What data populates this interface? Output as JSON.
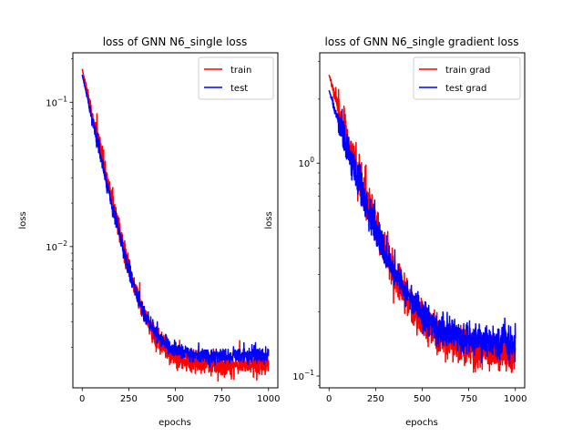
{
  "chart_data": [
    {
      "type": "line",
      "title": "loss of GNN N6_single loss",
      "xlabel": "epochs",
      "ylabel": "loss",
      "yscale": "log",
      "xlim": [
        -50,
        1050
      ],
      "ylim": [
        0.00105,
        0.22
      ],
      "xticks": [
        0,
        250,
        500,
        750,
        1000
      ],
      "yticks": [
        {
          "value": 0.1,
          "base": "10",
          "exp": "−1"
        },
        {
          "value": 0.01,
          "base": "10",
          "exp": "−2"
        }
      ],
      "legend_position": "top-right",
      "grid": false,
      "series": [
        {
          "name": "train",
          "color": "#ff0000",
          "start": 0.17,
          "tail": 0.00152,
          "rate": 0.0135,
          "noise": 0.16,
          "trend": 0.0
        },
        {
          "name": "test",
          "color": "#0000ff",
          "start": 0.155,
          "tail": 0.00175,
          "rate": 0.0135,
          "noise": 0.11,
          "trend": 0.0
        }
      ]
    },
    {
      "type": "line",
      "title": "loss of GNN N6_single gradient loss",
      "xlabel": "epochs",
      "ylabel": "loss",
      "yscale": "log",
      "xlim": [
        -50,
        1050
      ],
      "ylim": [
        0.088,
        3.3
      ],
      "xticks": [
        0,
        250,
        500,
        750,
        1000
      ],
      "yticks": [
        {
          "value": 1,
          "base": "10",
          "exp": "0"
        },
        {
          "value": 0.1,
          "base": "10",
          "exp": "−1"
        }
      ],
      "legend_position": "top-right",
      "grid": false,
      "series": [
        {
          "name": "train grad",
          "color": "#ff0000",
          "start": 2.6,
          "tail": 0.125,
          "rate": 0.0075,
          "noise": 0.2,
          "trend": 0.0
        },
        {
          "name": "test grad",
          "color": "#0000ff",
          "start": 2.2,
          "tail": 0.14,
          "rate": 0.0072,
          "noise": 0.17,
          "trend": 0.0
        }
      ]
    }
  ]
}
